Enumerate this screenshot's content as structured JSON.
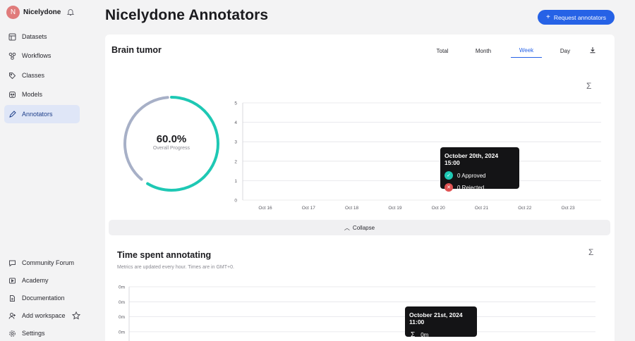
{
  "workspace": {
    "initial": "N",
    "name": "Nicelydone"
  },
  "sidebar": {
    "items": [
      {
        "label": "Datasets",
        "icon": "datasets-icon"
      },
      {
        "label": "Workflows",
        "icon": "workflows-icon"
      },
      {
        "label": "Classes",
        "icon": "tag-icon"
      },
      {
        "label": "Models",
        "icon": "models-icon"
      },
      {
        "label": "Annotators",
        "icon": "pen-icon",
        "active": true
      }
    ],
    "bottom": [
      {
        "label": "Community Forum",
        "icon": "chat-icon"
      },
      {
        "label": "Academy",
        "icon": "play-icon"
      },
      {
        "label": "Documentation",
        "icon": "document-icon"
      },
      {
        "label": "Add workspace",
        "icon": "add-user-icon"
      },
      {
        "label": "Settings",
        "icon": "gear-icon"
      }
    ]
  },
  "header": {
    "title": "Nicelydone Annotators",
    "request_button": "Request annotators",
    "request_icon": "+"
  },
  "card": {
    "title": "Brain tumor",
    "tabs": [
      "Total",
      "Month",
      "Week",
      "Day"
    ],
    "active_tab": "Week",
    "progress": {
      "value": "60.0%",
      "fraction": 0.6,
      "label": "Overall Progress"
    },
    "collapse_label": "Collapse"
  },
  "chart_data": [
    {
      "type": "bar",
      "categories": [
        "Oct 16",
        "Oct 17",
        "Oct 18",
        "Oct 19",
        "Oct 20",
        "Oct 21",
        "Oct 22",
        "Oct 23"
      ],
      "series": [
        {
          "name": "Approved",
          "values": [
            0,
            0,
            0,
            0,
            0,
            0,
            0,
            0
          ]
        },
        {
          "name": "Rejected",
          "values": [
            0,
            0,
            0,
            0,
            0,
            0,
            0,
            0
          ]
        }
      ],
      "yticks": [
        "0",
        "1",
        "2",
        "3",
        "4",
        "5"
      ],
      "ylim": [
        0,
        5
      ],
      "grid": true,
      "tooltip": {
        "title": "October 20th, 2024 15:00",
        "rows": [
          "0 Approved",
          "0 Rejected"
        ]
      }
    },
    {
      "type": "line",
      "title": "Time spent annotating",
      "subtitle": "Metrics are updated every hour. Times are in GMT+0.",
      "yticks": [
        "0m",
        "0m",
        "0m",
        "0m"
      ],
      "grid": true,
      "tooltip": {
        "title": "October 21st, 2024 11:00",
        "value": "0m"
      }
    }
  ],
  "colors": {
    "accent": "#2662e6",
    "progress": "#1ec8b4",
    "progress_track": "#a7b0c7",
    "approved": "#1ec8b4",
    "rejected": "#e05252"
  }
}
